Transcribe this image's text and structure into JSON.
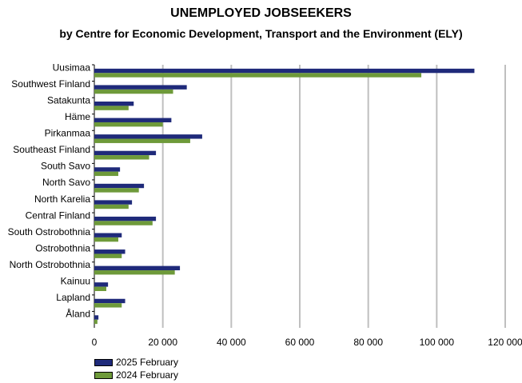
{
  "chart_data": {
    "type": "bar",
    "orientation": "horizontal",
    "title": "UNEMPLOYED JOBSEEKERS",
    "subtitle": "by Centre for Economic Development, Transport and the Environment (ELY)",
    "categories": [
      "Uusimaa",
      "Southwest Finland",
      "Satakunta",
      "Häme",
      "Pirkanmaa",
      "Southeast Finland",
      "South Savo",
      "North Savo",
      "North Karelia",
      "Central Finland",
      "South Ostrobothnia",
      "Ostrobothnia",
      "North Ostrobothnia",
      "Kainuu",
      "Lapland",
      "Åland"
    ],
    "series": [
      {
        "name": "2025 February",
        "color": "#1f2a7a",
        "values": [
          111000,
          27000,
          11500,
          22500,
          31500,
          18000,
          7500,
          14500,
          11000,
          18000,
          8000,
          9000,
          25000,
          4000,
          9000,
          1200
        ]
      },
      {
        "name": "2024 February",
        "color": "#6e9a3a",
        "values": [
          95500,
          23000,
          10000,
          20000,
          28000,
          16000,
          7000,
          13000,
          10000,
          17000,
          7000,
          8000,
          23500,
          3500,
          8000,
          900
        ]
      }
    ],
    "xlim": [
      0,
      120000
    ],
    "xticks": [
      0,
      20000,
      40000,
      60000,
      80000,
      100000,
      120000
    ],
    "xtick_labels": [
      "0",
      "20 000",
      "40 000",
      "60 000",
      "80 000",
      "100 000",
      "120 000"
    ],
    "grid": true,
    "legend_position": "bottom-left"
  }
}
